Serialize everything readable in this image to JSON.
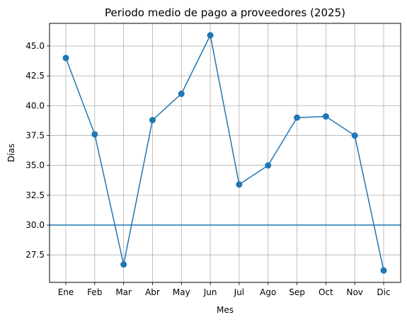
{
  "chart_data": {
    "type": "line",
    "title": "Periodo medio de pago a proveedores (2025)",
    "xlabel": "Mes",
    "ylabel": "Días",
    "categories": [
      "Ene",
      "Feb",
      "Mar",
      "Abr",
      "May",
      "Jun",
      "Jul",
      "Ago",
      "Sep",
      "Oct",
      "Nov",
      "Dic"
    ],
    "series": [
      {
        "values": [
          44.0,
          37.6,
          26.7,
          38.8,
          41.0,
          45.9,
          33.4,
          35.0,
          39.0,
          39.1,
          37.5,
          26.2
        ],
        "color": "#1f77b4"
      }
    ],
    "reference_line": {
      "y": 30.0,
      "color": "#1f77b4"
    },
    "ylim": [
      25.2,
      46.9
    ],
    "yticks": [
      27.5,
      30.0,
      32.5,
      35.0,
      37.5,
      40.0,
      42.5,
      45.0
    ],
    "ytick_labels": [
      "27.5",
      "30.0",
      "32.5",
      "35.0",
      "37.5",
      "40.0",
      "42.5",
      "45.0"
    ],
    "grid": true,
    "legend": "none"
  }
}
